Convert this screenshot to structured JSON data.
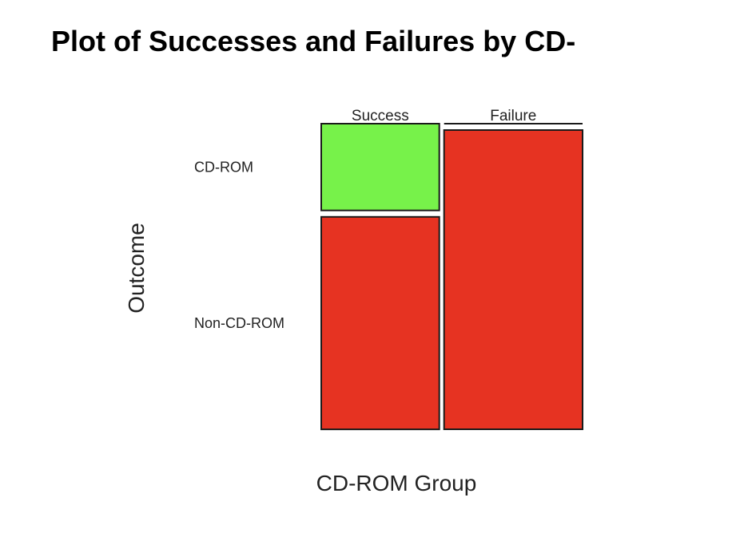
{
  "chart_data": {
    "type": "mosaic",
    "title": "Plot of Successes and Failures by CD-",
    "xlabel": "CD-ROM Group",
    "ylabel": "Outcome",
    "columns": [
      "Success",
      "Failure"
    ],
    "rows": [
      "CD-ROM",
      "Non-CD-ROM"
    ],
    "column_proportions": [
      0.46,
      0.54
    ],
    "cells": [
      {
        "column": "Success",
        "row": "CD-ROM",
        "proportion": 0.29,
        "color": "#77f24a"
      },
      {
        "column": "Success",
        "row": "Non-CD-ROM",
        "proportion": 0.71,
        "color": "#e63322"
      },
      {
        "column": "Failure",
        "row": "CD-ROM",
        "proportion": 0.0,
        "color": "#e63322"
      },
      {
        "column": "Failure",
        "row": "Non-CD-ROM",
        "proportion": 1.0,
        "color": "#e63322"
      }
    ],
    "colors": {
      "success_cd_rom": "#77f24a",
      "other": "#e63322",
      "border": "#1a1a1a"
    }
  }
}
